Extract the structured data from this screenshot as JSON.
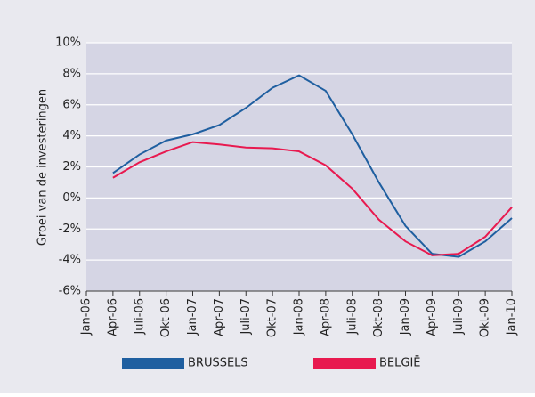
{
  "chart_data": {
    "type": "line",
    "ylabel": "Groei van de investeringen",
    "categories": [
      "Jan-06",
      "Apr-06",
      "Juli-06",
      "Okt-06",
      "Jan-07",
      "Apr-07",
      "Juli-07",
      "Okt-07",
      "Jan-08",
      "Apr-08",
      "Juli-08",
      "Okt-08",
      "Jan-09",
      "Apr-09",
      "Juli-09",
      "Okt-09",
      "Jan-10"
    ],
    "series": [
      {
        "name": "BRUSSELS",
        "color": "#1f5fa0",
        "values": [
          null,
          1.6,
          2.8,
          3.7,
          4.1,
          4.7,
          5.8,
          7.1,
          7.9,
          6.9,
          4.1,
          1.0,
          -1.8,
          -3.6,
          -3.8,
          -2.8,
          -1.3
        ]
      },
      {
        "name": "BELGIË",
        "color": "#e8194f",
        "values": [
          null,
          1.3,
          2.3,
          3.0,
          3.6,
          3.45,
          3.25,
          3.2,
          3.0,
          2.1,
          0.6,
          -1.4,
          -2.8,
          -3.7,
          -3.6,
          -2.5,
          -0.6
        ]
      }
    ],
    "ylim": [
      -6,
      10
    ],
    "yticks": [
      {
        "value": -6,
        "label": "-6%"
      },
      {
        "value": -4,
        "label": "-4%"
      },
      {
        "value": -2,
        "label": "-2%"
      },
      {
        "value": 0,
        "label": "0%"
      },
      {
        "value": 2,
        "label": "2%"
      },
      {
        "value": 4,
        "label": "4%"
      },
      {
        "value": 6,
        "label": "6%"
      },
      {
        "value": 8,
        "label": "8%"
      },
      {
        "value": 10,
        "label": "10%"
      }
    ],
    "grid": true,
    "legend": "bottom"
  }
}
